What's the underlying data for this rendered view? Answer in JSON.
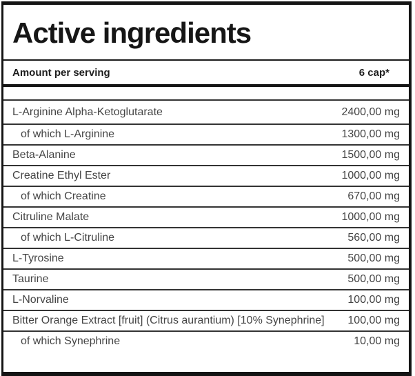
{
  "table": {
    "title": "Active ingredients",
    "header": {
      "label": "Amount per serving",
      "value": "6 cap*"
    },
    "rows": [
      {
        "name": "L-Arginine Alpha-Ketoglutarate",
        "amount": "2400,00 mg",
        "indent": false
      },
      {
        "name": "of which L-Arginine",
        "amount": "1300,00 mg",
        "indent": true
      },
      {
        "name": "Beta-Alanine",
        "amount": "1500,00 mg",
        "indent": false
      },
      {
        "name": "Creatine Ethyl Ester",
        "amount": "1000,00 mg",
        "indent": false
      },
      {
        "name": "of which Creatine",
        "amount": "670,00 mg",
        "indent": true
      },
      {
        "name": "Citruline Malate",
        "amount": "1000,00 mg",
        "indent": false
      },
      {
        "name": "of which L-Citruline",
        "amount": "560,00 mg",
        "indent": true
      },
      {
        "name": "L-Tyrosine",
        "amount": "500,00 mg",
        "indent": false
      },
      {
        "name": "Taurine",
        "amount": "500,00 mg",
        "indent": false
      },
      {
        "name": "L-Norvaline",
        "amount": "100,00 mg",
        "indent": false
      },
      {
        "name": "Bitter Orange Extract [fruit] (Citrus aurantium) [10% Synephrine]",
        "amount": "100,00 mg",
        "indent": false
      },
      {
        "name": "of which Synephrine",
        "amount": "10,00 mg",
        "indent": true
      }
    ],
    "colors": {
      "border": "#141414",
      "line_dark": "#1a1a1a",
      "separator": "#333333",
      "title_text": "#161616",
      "header_text": "#1c1c1c",
      "row_text": "#454545",
      "background": "#ffffff"
    }
  }
}
